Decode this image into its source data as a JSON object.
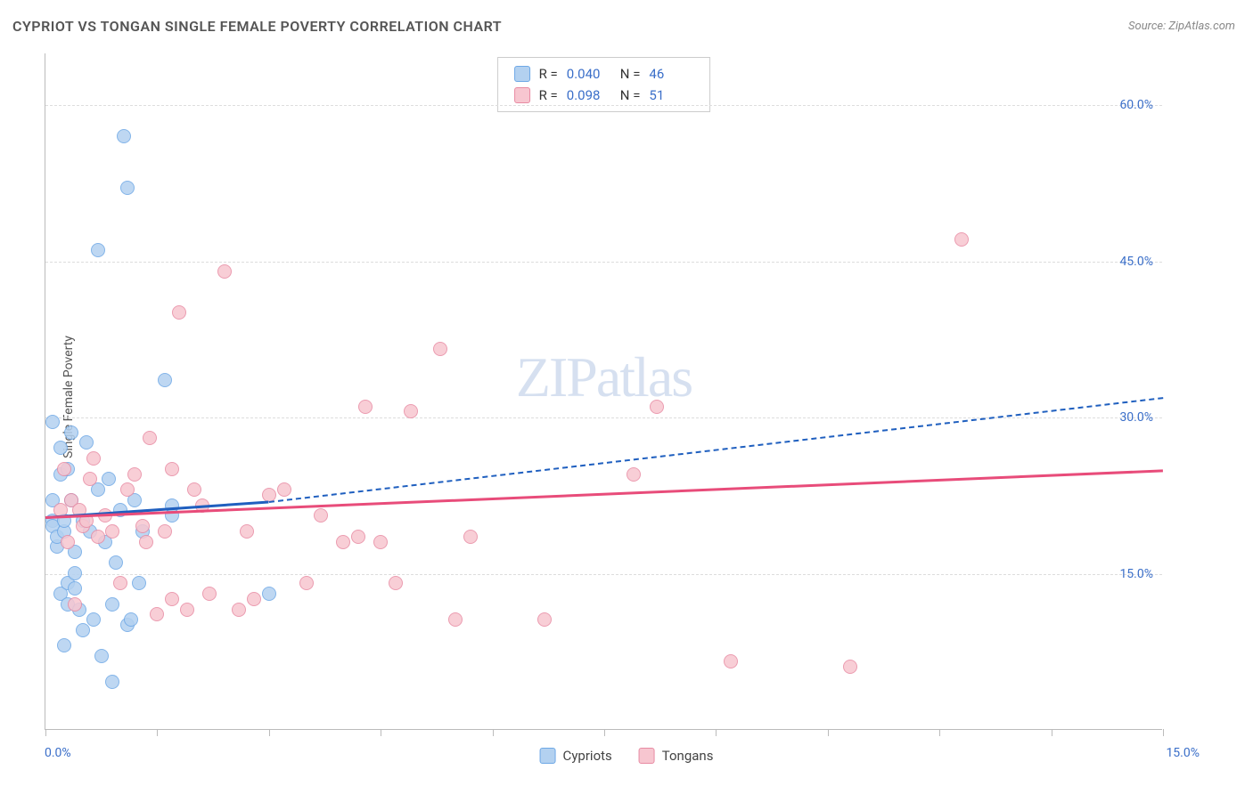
{
  "chart": {
    "type": "scatter",
    "title": "CYPRIOT VS TONGAN SINGLE FEMALE POVERTY CORRELATION CHART",
    "source_label": "Source: ZipAtlas.com",
    "y_axis_label": "Single Female Poverty",
    "watermark": "ZIPatlas",
    "xlim": [
      0.0,
      15.0
    ],
    "ylim": [
      0.0,
      65.0
    ],
    "x_ticks": [
      0.0,
      1.5,
      3.0,
      4.5,
      6.0,
      7.5,
      9.0,
      10.5,
      12.0,
      13.5,
      15.0
    ],
    "x_tick_labels": {
      "left": "0.0%",
      "right": "15.0%"
    },
    "y_gridlines": [
      15.0,
      30.0,
      45.0,
      60.0
    ],
    "y_tick_labels": [
      "15.0%",
      "30.0%",
      "45.0%",
      "60.0%"
    ],
    "background_color": "#ffffff",
    "grid_color": "#dddddd",
    "axis_color": "#bbbbbb",
    "tick_label_color": "#3b6fc9",
    "stats": {
      "series1": {
        "r_label": "R =",
        "r": "0.040",
        "n_label": "N =",
        "n": "46"
      },
      "series2": {
        "r_label": "R =",
        "r": "0.098",
        "n_label": "N =",
        "n": "51"
      }
    },
    "series": [
      {
        "name": "Cypriots",
        "fill_color": "#b3d1f0",
        "stroke_color": "#6ea8e6",
        "trend_color": "#1f5fbf",
        "trend_solid": {
          "x1": 0.0,
          "y1": 20.5,
          "x2": 3.0,
          "y2": 22.0
        },
        "trend_dash": {
          "x1": 3.0,
          "y1": 22.0,
          "x2": 15.0,
          "y2": 32.0
        },
        "points": [
          [
            0.1,
            20.0
          ],
          [
            0.1,
            22.0
          ],
          [
            0.1,
            19.5
          ],
          [
            0.1,
            29.5
          ],
          [
            0.15,
            17.5
          ],
          [
            0.15,
            18.5
          ],
          [
            0.2,
            27.0
          ],
          [
            0.2,
            24.5
          ],
          [
            0.2,
            13.0
          ],
          [
            0.25,
            19.0
          ],
          [
            0.25,
            20.0
          ],
          [
            0.25,
            8.0
          ],
          [
            0.3,
            12.0
          ],
          [
            0.3,
            14.0
          ],
          [
            0.3,
            25.0
          ],
          [
            0.35,
            22.0
          ],
          [
            0.35,
            28.5
          ],
          [
            0.4,
            15.0
          ],
          [
            0.4,
            13.5
          ],
          [
            0.4,
            17.0
          ],
          [
            0.45,
            11.5
          ],
          [
            0.5,
            20.0
          ],
          [
            0.5,
            9.5
          ],
          [
            0.55,
            27.5
          ],
          [
            0.6,
            19.0
          ],
          [
            0.65,
            10.5
          ],
          [
            0.7,
            23.0
          ],
          [
            0.7,
            46.0
          ],
          [
            0.75,
            7.0
          ],
          [
            0.8,
            18.0
          ],
          [
            0.85,
            24.0
          ],
          [
            0.9,
            12.0
          ],
          [
            0.95,
            16.0
          ],
          [
            1.0,
            21.0
          ],
          [
            1.05,
            57.0
          ],
          [
            1.1,
            52.0
          ],
          [
            1.1,
            10.0
          ],
          [
            1.15,
            10.5
          ],
          [
            1.2,
            22.0
          ],
          [
            1.25,
            14.0
          ],
          [
            1.3,
            19.0
          ],
          [
            1.6,
            33.5
          ],
          [
            1.7,
            20.5
          ],
          [
            1.7,
            21.5
          ],
          [
            0.9,
            4.5
          ],
          [
            3.0,
            13.0
          ]
        ]
      },
      {
        "name": "Tongans",
        "fill_color": "#f7c6d0",
        "stroke_color": "#e88ba3",
        "trend_color": "#e84c7a",
        "trend_solid": {
          "x1": 0.0,
          "y1": 20.5,
          "x2": 15.0,
          "y2": 25.0
        },
        "trend_dash": null,
        "points": [
          [
            0.2,
            21.0
          ],
          [
            0.25,
            25.0
          ],
          [
            0.3,
            18.0
          ],
          [
            0.35,
            22.0
          ],
          [
            0.45,
            21.0
          ],
          [
            0.5,
            19.5
          ],
          [
            0.55,
            20.0
          ],
          [
            0.6,
            24.0
          ],
          [
            0.65,
            26.0
          ],
          [
            0.7,
            18.5
          ],
          [
            0.8,
            20.5
          ],
          [
            0.9,
            19.0
          ],
          [
            1.0,
            14.0
          ],
          [
            1.1,
            23.0
          ],
          [
            1.2,
            24.5
          ],
          [
            1.3,
            19.5
          ],
          [
            1.35,
            18.0
          ],
          [
            1.4,
            28.0
          ],
          [
            1.5,
            11.0
          ],
          [
            1.6,
            19.0
          ],
          [
            1.7,
            25.0
          ],
          [
            1.7,
            12.5
          ],
          [
            1.8,
            40.0
          ],
          [
            1.9,
            11.5
          ],
          [
            2.0,
            23.0
          ],
          [
            2.1,
            21.5
          ],
          [
            2.2,
            13.0
          ],
          [
            2.4,
            44.0
          ],
          [
            2.6,
            11.5
          ],
          [
            2.7,
            19.0
          ],
          [
            2.8,
            12.5
          ],
          [
            3.0,
            22.5
          ],
          [
            3.2,
            23.0
          ],
          [
            3.5,
            14.0
          ],
          [
            3.7,
            20.5
          ],
          [
            4.0,
            18.0
          ],
          [
            4.2,
            18.5
          ],
          [
            4.3,
            31.0
          ],
          [
            4.5,
            18.0
          ],
          [
            4.7,
            14.0
          ],
          [
            4.9,
            30.5
          ],
          [
            5.3,
            36.5
          ],
          [
            5.5,
            10.5
          ],
          [
            5.7,
            18.5
          ],
          [
            6.7,
            10.5
          ],
          [
            7.9,
            24.5
          ],
          [
            8.2,
            31.0
          ],
          [
            9.2,
            6.5
          ],
          [
            10.8,
            6.0
          ],
          [
            12.3,
            47.0
          ],
          [
            0.4,
            12.0
          ]
        ]
      }
    ],
    "marker_radius": 8,
    "legend_labels": [
      "Cypriots",
      "Tongans"
    ]
  }
}
